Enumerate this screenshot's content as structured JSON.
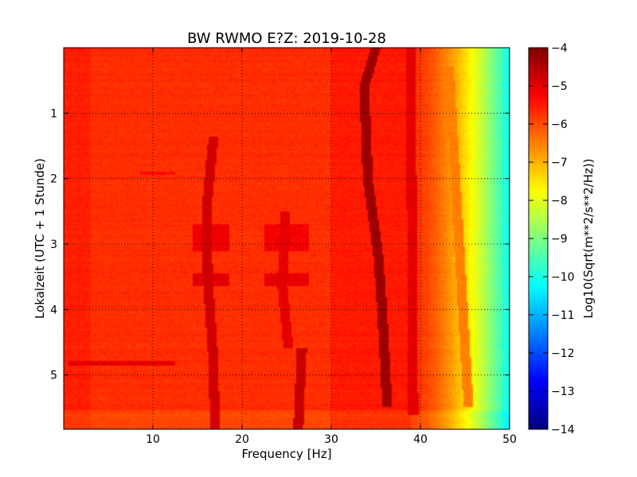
{
  "chart_data": {
    "type": "heatmap",
    "title": "BW RWMO E?Z: 2019-10-28",
    "xlabel": "Frequency [Hz]",
    "ylabel": "Lokalzeit (UTC + 1 Stunde)",
    "xlim": [
      0,
      50
    ],
    "ylim": [
      5.83,
      0
    ],
    "y_inverted": true,
    "xticks": [
      10,
      20,
      30,
      40,
      50
    ],
    "yticks": [
      1,
      2,
      3,
      4,
      5
    ],
    "grid": true,
    "colormap": "jet",
    "colorbar": {
      "label": "Log10(Sqrt(m**2/s**2/Hz))",
      "range": [
        -14,
        -4
      ],
      "ticks": [
        -4,
        -5,
        -6,
        -7,
        -8,
        -9,
        -10,
        -11,
        -12,
        -13,
        -14
      ]
    },
    "background_level": -5.7,
    "rolloff": {
      "start_hz": 39,
      "end_hz": 50,
      "value_at_50hz": -10.2
    },
    "bottom_band": {
      "start_time": 5.55,
      "offset": 0.25
    },
    "lines": [
      {
        "points": [
          [
            35.0,
            0.0
          ],
          [
            33.7,
            0.6
          ],
          [
            34.1,
            2.0
          ],
          [
            35.3,
            3.2
          ],
          [
            35.7,
            4.0
          ],
          [
            36.3,
            5.5
          ]
        ],
        "level": -4.3
      },
      {
        "points": [
          [
            16.8,
            1.35
          ],
          [
            16.0,
            2.5
          ],
          [
            16.2,
            3.6
          ],
          [
            16.7,
            4.6
          ],
          [
            17.0,
            5.83
          ]
        ],
        "level": -4.8
      },
      {
        "points": [
          [
            24.9,
            2.5
          ],
          [
            24.5,
            3.6
          ],
          [
            25.2,
            4.6
          ]
        ],
        "level": -5.0
      },
      {
        "points": [
          [
            26.7,
            4.6
          ],
          [
            26.3,
            5.83
          ]
        ],
        "level": -4.7
      },
      {
        "points": [
          [
            38.9,
            0.0
          ],
          [
            39.2,
            5.6
          ]
        ],
        "level": -5.0
      },
      {
        "points": [
          [
            43.2,
            0.3
          ],
          [
            45.4,
            5.5
          ]
        ],
        "level": -6.5
      }
    ],
    "patches": [
      {
        "f": [
          14.5,
          18.5
        ],
        "t": [
          2.7,
          3.1
        ],
        "level": -5.1
      },
      {
        "f": [
          14.5,
          18.5
        ],
        "t": [
          3.45,
          3.65
        ],
        "level": -5.0
      },
      {
        "f": [
          22.5,
          27.5
        ],
        "t": [
          2.7,
          3.1
        ],
        "level": -5.15
      },
      {
        "f": [
          22.5,
          27.5
        ],
        "t": [
          3.45,
          3.65
        ],
        "level": -5.05
      },
      {
        "f": [
          0.5,
          12.5
        ],
        "t": [
          4.78,
          4.85
        ],
        "level": -5.0
      },
      {
        "f": [
          8.5,
          12.5
        ],
        "t": [
          1.9,
          1.95
        ],
        "level": -5.3
      }
    ]
  }
}
